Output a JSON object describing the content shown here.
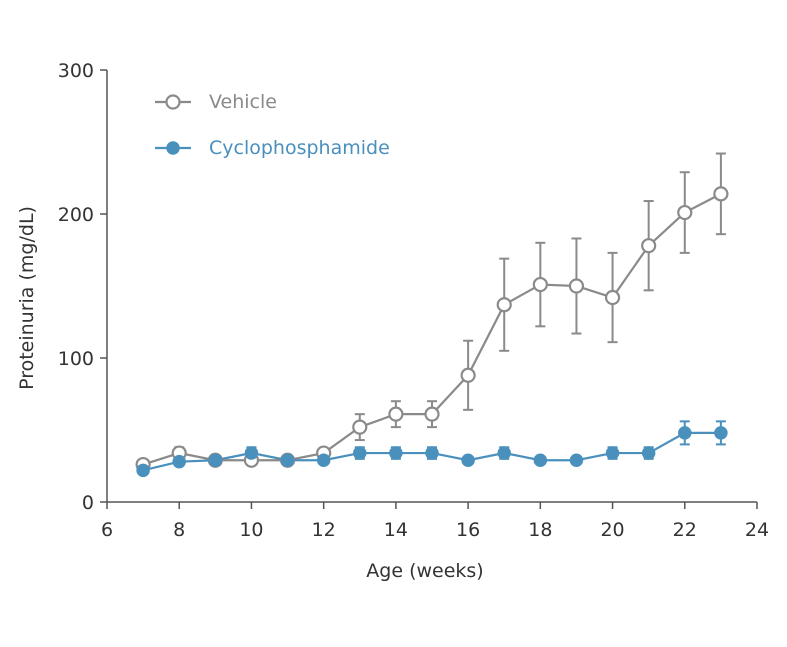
{
  "chart_data": {
    "type": "line",
    "xlabel": "Age (weeks)",
    "ylabel": "Proteinuria (mg/dL)",
    "xlim": [
      6,
      24
    ],
    "ylim": [
      0,
      300
    ],
    "xticks": [
      6,
      8,
      10,
      12,
      14,
      16,
      18,
      20,
      22,
      24
    ],
    "yticks": [
      0,
      100,
      200,
      300
    ],
    "legend_position": "top-left",
    "grid": false,
    "series": [
      {
        "name": "Vehicle",
        "color": "#8a8a8a",
        "marker": "open-circle",
        "points": [
          {
            "x": 7,
            "y": 26,
            "err": 0
          },
          {
            "x": 8,
            "y": 34,
            "err": 4
          },
          {
            "x": 9,
            "y": 29,
            "err": 0
          },
          {
            "x": 10,
            "y": 29,
            "err": 0
          },
          {
            "x": 11,
            "y": 29,
            "err": 0
          },
          {
            "x": 12,
            "y": 34,
            "err": 3
          },
          {
            "x": 13,
            "y": 52,
            "err": 9
          },
          {
            "x": 14,
            "y": 61,
            "err": 9
          },
          {
            "x": 15,
            "y": 61,
            "err": 9
          },
          {
            "x": 16,
            "y": 88,
            "err": 24
          },
          {
            "x": 17,
            "y": 137,
            "err": 32
          },
          {
            "x": 18,
            "y": 151,
            "err": 29
          },
          {
            "x": 19,
            "y": 150,
            "err": 33
          },
          {
            "x": 20,
            "y": 142,
            "err": 31
          },
          {
            "x": 21,
            "y": 178,
            "err": 31
          },
          {
            "x": 22,
            "y": 201,
            "err": 28
          },
          {
            "x": 23,
            "y": 214,
            "err": 28
          }
        ]
      },
      {
        "name": "Cyclophosphamide",
        "color": "#4a90bd",
        "marker": "filled-circle",
        "points": [
          {
            "x": 7,
            "y": 22,
            "err": 0
          },
          {
            "x": 8,
            "y": 28,
            "err": 0
          },
          {
            "x": 9,
            "y": 29,
            "err": 0
          },
          {
            "x": 10,
            "y": 34,
            "err": 4
          },
          {
            "x": 11,
            "y": 29,
            "err": 0
          },
          {
            "x": 12,
            "y": 29,
            "err": 0
          },
          {
            "x": 13,
            "y": 34,
            "err": 4
          },
          {
            "x": 14,
            "y": 34,
            "err": 4
          },
          {
            "x": 15,
            "y": 34,
            "err": 4
          },
          {
            "x": 16,
            "y": 29,
            "err": 0
          },
          {
            "x": 17,
            "y": 34,
            "err": 4
          },
          {
            "x": 18,
            "y": 29,
            "err": 0
          },
          {
            "x": 19,
            "y": 29,
            "err": 0
          },
          {
            "x": 20,
            "y": 34,
            "err": 4
          },
          {
            "x": 21,
            "y": 34,
            "err": 4
          },
          {
            "x": 22,
            "y": 48,
            "err": 8
          },
          {
            "x": 23,
            "y": 48,
            "err": 8
          }
        ]
      }
    ]
  }
}
